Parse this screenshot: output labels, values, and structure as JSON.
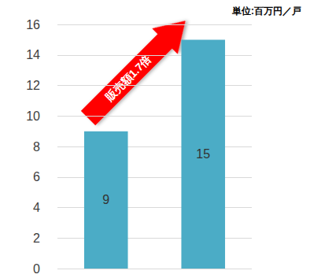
{
  "chart_data": {
    "type": "bar",
    "subtitle": "単位:百万円／戸",
    "annotation": "販売額1.7倍",
    "categories": [
      null,
      null
    ],
    "values": [
      9,
      15
    ],
    "color": "#4bacc6",
    "ylim": [
      0,
      16
    ],
    "yticks": [
      0,
      2,
      4,
      6,
      8,
      10,
      12,
      14,
      16
    ],
    "grid": true,
    "data_labels": true
  }
}
